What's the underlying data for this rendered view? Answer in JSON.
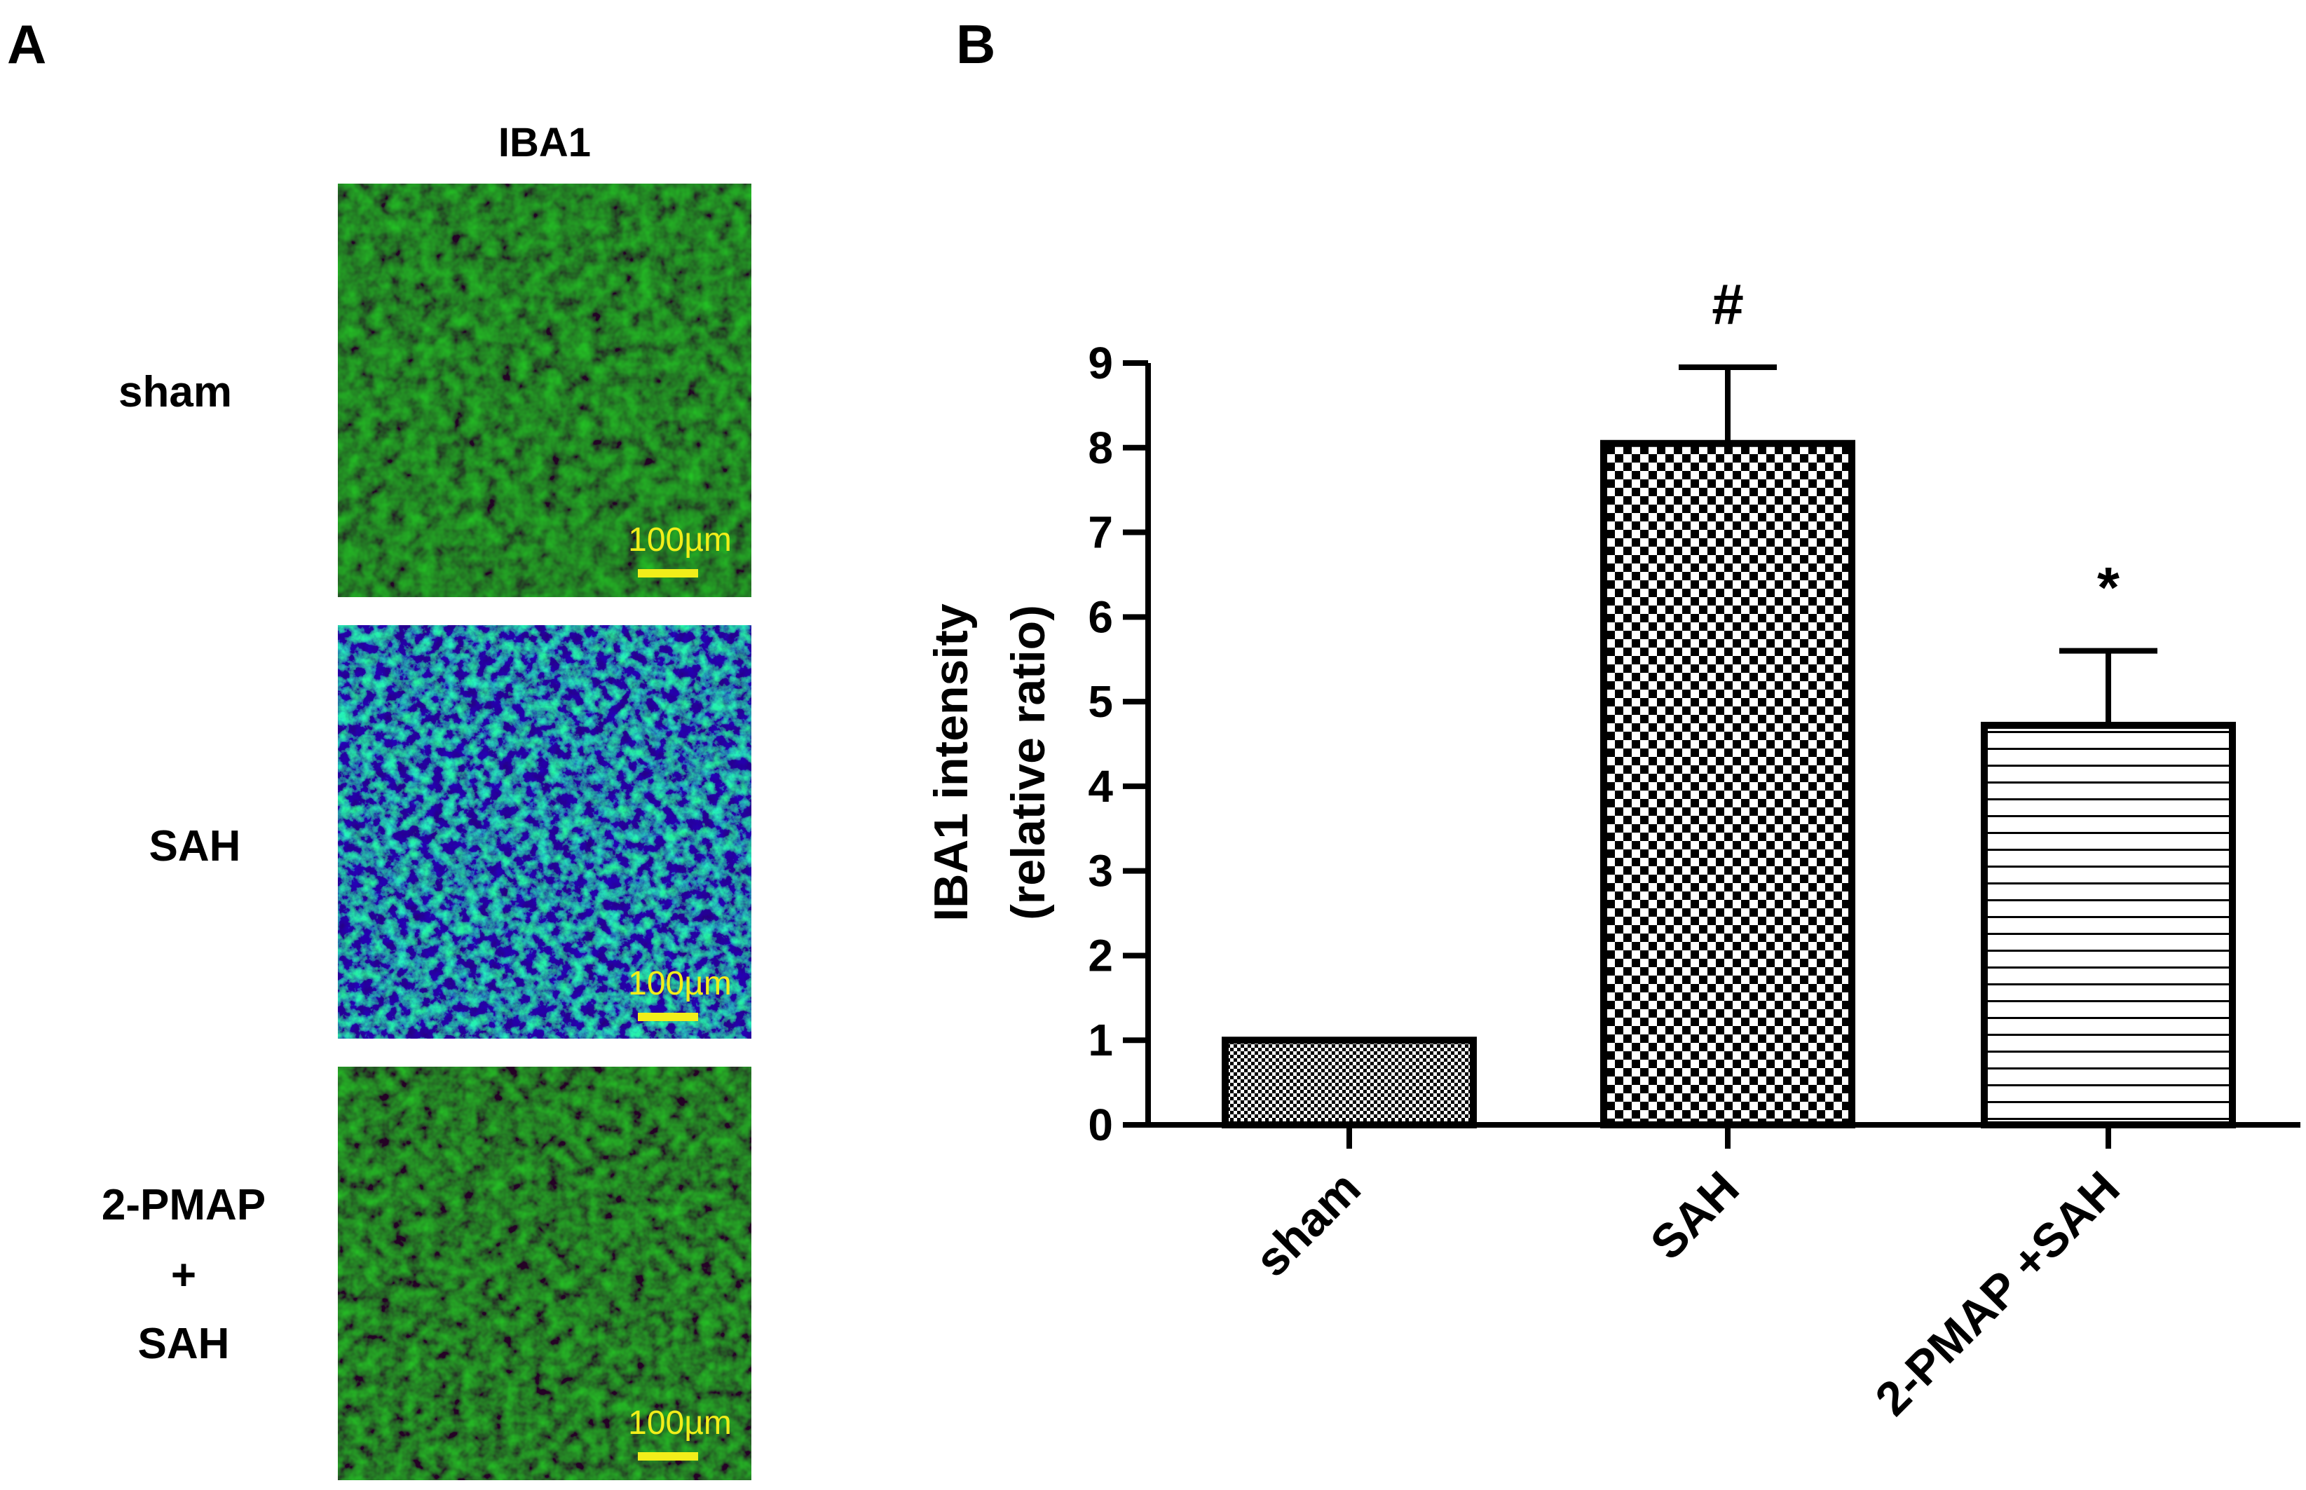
{
  "panel_a": {
    "letter": "A",
    "column_header": "IBA1",
    "scale_bar": "100µm",
    "scale_color": "#f2ee1a",
    "rows": [
      {
        "label_lines": [
          "sham"
        ],
        "tone": "dim-green"
      },
      {
        "label_lines": [
          "SAH"
        ],
        "tone": "bright-green-blue"
      },
      {
        "label_lines": [
          "2-PMAP",
          "+",
          "SAH"
        ],
        "tone": "dim-green"
      }
    ]
  },
  "panel_b": {
    "letter": "B"
  },
  "chart_data": {
    "type": "bar",
    "categories": [
      "sham",
      "SAH",
      "2-PMAP +SAH"
    ],
    "values": [
      1.0,
      8.05,
      4.72
    ],
    "error": [
      0,
      0.9,
      0.88
    ],
    "annotations": [
      "",
      "#",
      "*"
    ],
    "patterns": [
      "fine-checker",
      "checker",
      "horizontal-lines"
    ],
    "ylabel_lines": [
      "IBA1 intensity",
      "(relative ratio)"
    ],
    "xlabel": "",
    "ylim": [
      0,
      9
    ],
    "yticks": [
      0,
      1,
      2,
      3,
      4,
      5,
      6,
      7,
      8,
      9
    ],
    "grid": false,
    "legend": "none"
  }
}
